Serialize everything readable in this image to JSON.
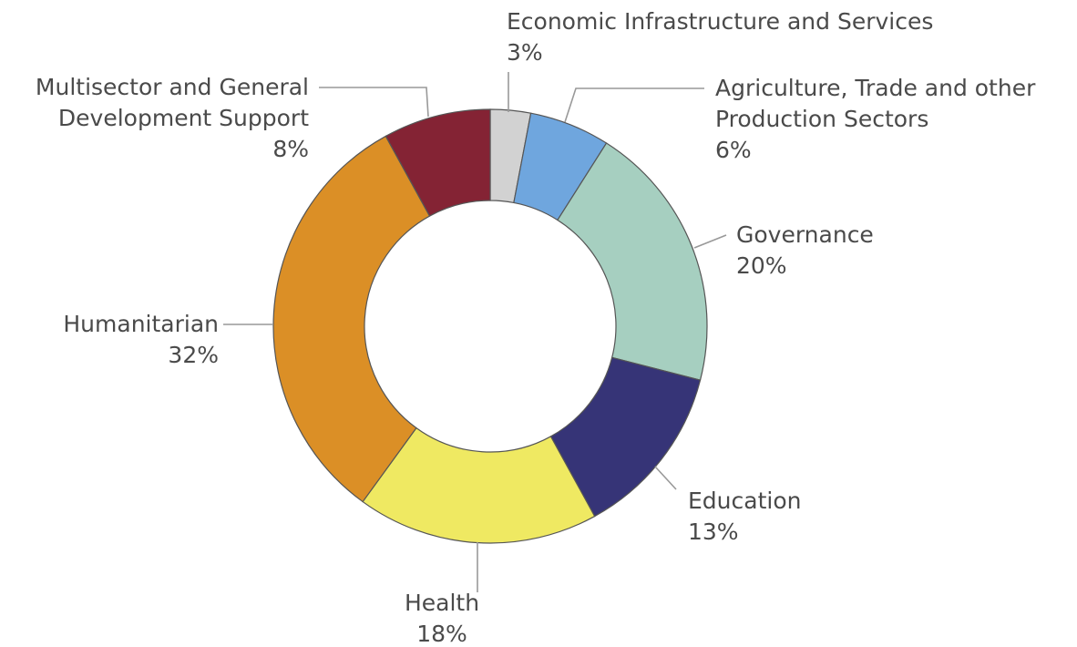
{
  "chart_data": {
    "type": "pie",
    "variant": "donut",
    "title": "",
    "slices": [
      {
        "label_lines": [
          "Economic Infrastructure and Services"
        ],
        "value": 3,
        "pct_label": "3%",
        "color": "#d2d2d2"
      },
      {
        "label_lines": [
          "Agriculture, Trade and other",
          "Production Sectors"
        ],
        "value": 6,
        "pct_label": "6%",
        "color": "#6fa6de"
      },
      {
        "label_lines": [
          "Governance"
        ],
        "value": 20,
        "pct_label": "20%",
        "color": "#a6cfc0"
      },
      {
        "label_lines": [
          "Education"
        ],
        "value": 13,
        "pct_label": "13%",
        "color": "#363477"
      },
      {
        "label_lines": [
          "Health"
        ],
        "value": 18,
        "pct_label": "18%",
        "color": "#efe962"
      },
      {
        "label_lines": [
          "Humanitarian"
        ],
        "value": 32,
        "pct_label": "32%",
        "color": "#db8f26"
      },
      {
        "label_lines": [
          "Multisector and General",
          "Development Support"
        ],
        "value": 8,
        "pct_label": "8%",
        "color": "#842334"
      }
    ],
    "legend": "none",
    "labels": "outside with leader lines"
  }
}
